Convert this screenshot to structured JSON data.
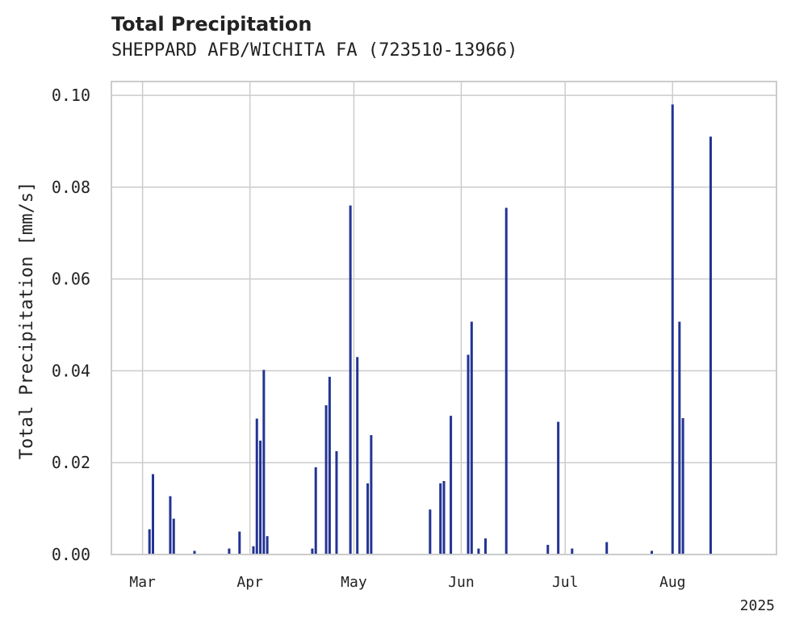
{
  "chart_data": {
    "type": "bar",
    "title": "Total Precipitation",
    "subtitle": "SHEPPARD AFB/WICHITA FA (723510-13966)",
    "ylabel": "Total Precipitation [mm/s]",
    "xlabel": "",
    "year_label": "2025",
    "ylim": [
      0,
      0.103
    ],
    "xlim": [
      "2025-02-20",
      "2025-08-31"
    ],
    "grid": true,
    "legend": "none",
    "bar_color": "#233494",
    "yticks": [
      "0.00",
      "0.02",
      "0.04",
      "0.06",
      "0.08",
      "0.10"
    ],
    "ytick_values": [
      0,
      0.02,
      0.04,
      0.06,
      0.08,
      0.1
    ],
    "xticks": [
      {
        "date": "2025-03-01",
        "label": "Mar"
      },
      {
        "date": "2025-04-01",
        "label": "Apr"
      },
      {
        "date": "2025-05-01",
        "label": "May"
      },
      {
        "date": "2025-06-01",
        "label": "Jun"
      },
      {
        "date": "2025-07-01",
        "label": "Jul"
      },
      {
        "date": "2025-08-01",
        "label": "Aug"
      }
    ],
    "points": [
      {
        "x": "2025-03-03",
        "y": 0.0055
      },
      {
        "x": "2025-03-04",
        "y": 0.0175
      },
      {
        "x": "2025-03-09",
        "y": 0.0127
      },
      {
        "x": "2025-03-10",
        "y": 0.0078
      },
      {
        "x": "2025-03-16",
        "y": 0.0008
      },
      {
        "x": "2025-03-26",
        "y": 0.0013
      },
      {
        "x": "2025-03-29",
        "y": 0.005
      },
      {
        "x": "2025-04-02",
        "y": 0.0018
      },
      {
        "x": "2025-04-03",
        "y": 0.0296
      },
      {
        "x": "2025-04-04",
        "y": 0.0248
      },
      {
        "x": "2025-04-05",
        "y": 0.0402
      },
      {
        "x": "2025-04-06",
        "y": 0.004
      },
      {
        "x": "2025-04-19",
        "y": 0.0013
      },
      {
        "x": "2025-04-20",
        "y": 0.019
      },
      {
        "x": "2025-04-23",
        "y": 0.0325
      },
      {
        "x": "2025-04-24",
        "y": 0.0387
      },
      {
        "x": "2025-04-26",
        "y": 0.0225
      },
      {
        "x": "2025-04-30",
        "y": 0.076
      },
      {
        "x": "2025-05-02",
        "y": 0.043
      },
      {
        "x": "2025-05-05",
        "y": 0.0155
      },
      {
        "x": "2025-05-06",
        "y": 0.026
      },
      {
        "x": "2025-05-23",
        "y": 0.0098
      },
      {
        "x": "2025-05-26",
        "y": 0.0155
      },
      {
        "x": "2025-05-27",
        "y": 0.016
      },
      {
        "x": "2025-05-29",
        "y": 0.0302
      },
      {
        "x": "2025-06-03",
        "y": 0.0435
      },
      {
        "x": "2025-06-04",
        "y": 0.0507
      },
      {
        "x": "2025-06-06",
        "y": 0.0013
      },
      {
        "x": "2025-06-08",
        "y": 0.0035
      },
      {
        "x": "2025-06-14",
        "y": 0.0755
      },
      {
        "x": "2025-06-26",
        "y": 0.0021
      },
      {
        "x": "2025-06-29",
        "y": 0.0289
      },
      {
        "x": "2025-07-03",
        "y": 0.0013
      },
      {
        "x": "2025-07-13",
        "y": 0.0027
      },
      {
        "x": "2025-07-26",
        "y": 0.0008
      },
      {
        "x": "2025-08-01",
        "y": 0.098
      },
      {
        "x": "2025-08-03",
        "y": 0.0507
      },
      {
        "x": "2025-08-04",
        "y": 0.0297
      },
      {
        "x": "2025-08-12",
        "y": 0.091
      }
    ]
  }
}
